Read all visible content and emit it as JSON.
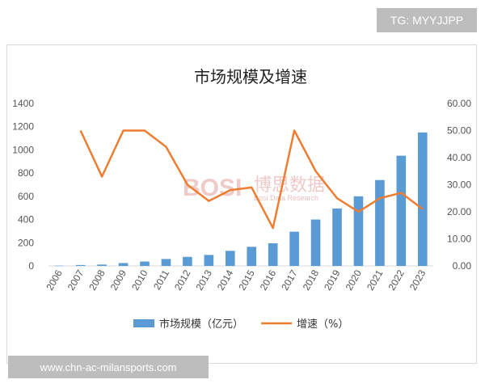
{
  "tag": "TG: MYYJJPP",
  "url": "www.chn-ac-milansports.com",
  "watermark": {
    "logo": "BOSI",
    "cn": "博思数据",
    "en": "Bosi Data Research"
  },
  "colors": {
    "bar": "#5b9bd5",
    "line": "#ed7d31"
  },
  "chart_data": {
    "type": "bar+line",
    "title": "市场规模及增速",
    "categories": [
      "2006",
      "2007",
      "2008",
      "2009",
      "2010",
      "2011",
      "2012",
      "2013",
      "2014",
      "2015",
      "2016",
      "2017",
      "2018",
      "2019",
      "2020",
      "2021",
      "2022",
      "2023"
    ],
    "series": [
      {
        "name": "市场规模（亿元）",
        "type": "bar",
        "axis": "left",
        "values": [
          2,
          8,
          12,
          25,
          38,
          60,
          78,
          95,
          130,
          165,
          195,
          295,
          400,
          495,
          600,
          740,
          950,
          1150
        ]
      },
      {
        "name": "增速（%）",
        "type": "line",
        "axis": "right",
        "values": [
          null,
          50,
          33,
          50,
          50,
          44,
          30,
          24,
          28,
          29,
          14,
          50,
          35,
          25,
          20,
          25,
          27,
          21
        ]
      }
    ],
    "y_left": {
      "min": 0,
      "max": 1400,
      "ticks": [
        "0",
        "200",
        "400",
        "600",
        "800",
        "1000",
        "1200",
        "1400"
      ]
    },
    "y_right": {
      "min": 0,
      "max": 60,
      "ticks": [
        "0.00",
        "10.00",
        "20.00",
        "30.00",
        "40.00",
        "50.00",
        "60.00"
      ]
    },
    "legend_position": "bottom",
    "grid": false
  }
}
